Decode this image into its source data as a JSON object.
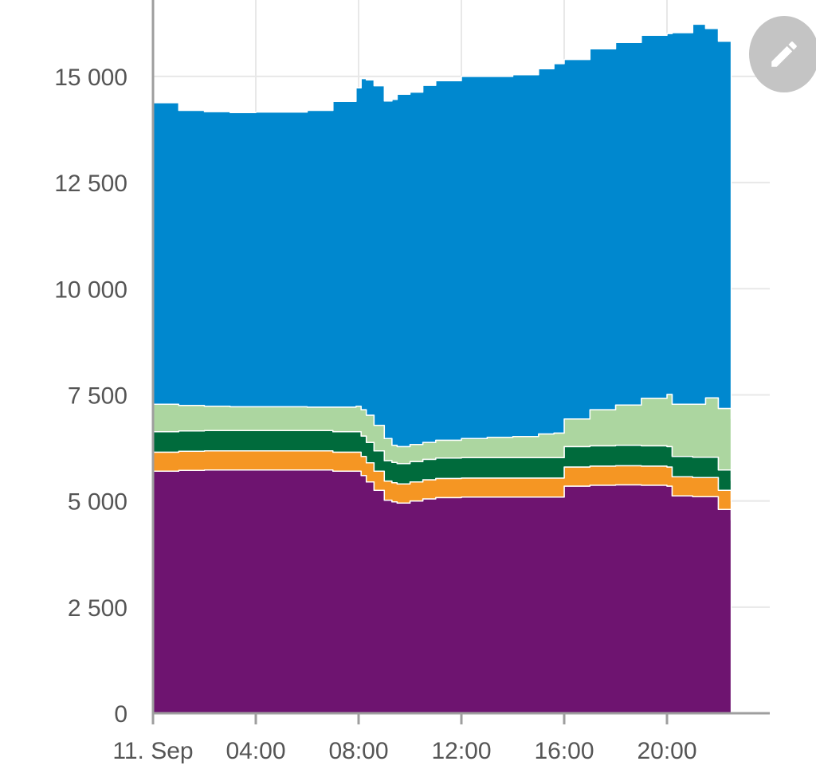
{
  "chart_data": {
    "type": "area",
    "stacked": true,
    "title": "",
    "xlabel": "",
    "ylabel": "",
    "x_ticks": [
      "11. Sep",
      "04:00",
      "08:00",
      "12:00",
      "16:00",
      "20:00"
    ],
    "x_tick_hours": [
      0,
      4,
      8,
      12,
      16,
      20
    ],
    "xlim_hours": [
      0,
      24
    ],
    "y_ticks": [
      "0",
      "2 500",
      "5 000",
      "7 500",
      "10 000",
      "12 500",
      "15 000"
    ],
    "y_tick_values": [
      0,
      2500,
      5000,
      7500,
      10000,
      12500,
      15000
    ],
    "ylim": [
      0,
      16800
    ],
    "grid": true,
    "legend": "none",
    "x_hours": [
      0.0,
      0.75,
      1.0,
      2.0,
      3.0,
      4.0,
      6.0,
      7.0,
      7.9,
      8.1,
      8.3,
      8.6,
      9.0,
      9.3,
      9.5,
      10.0,
      10.5,
      11.0,
      12.0,
      13.0,
      14.0,
      15.0,
      15.6,
      16.0,
      17.0,
      18.0,
      19.0,
      20.0,
      20.2,
      21.0,
      21.5,
      22.0,
      22.5
    ],
    "series": [
      {
        "color": "#6e1470",
        "values": [
          5700,
          5700,
          5720,
          5730,
          5730,
          5730,
          5730,
          5700,
          5700,
          5600,
          5450,
          5250,
          5020,
          4980,
          4950,
          5000,
          5050,
          5080,
          5090,
          5090,
          5090,
          5090,
          5090,
          5350,
          5370,
          5380,
          5370,
          5350,
          5120,
          5100,
          5100,
          4800,
          4550
        ]
      },
      {
        "color": "#f59623",
        "values": [
          450,
          450,
          450,
          450,
          450,
          450,
          450,
          450,
          450,
          450,
          450,
          450,
          450,
          450,
          450,
          450,
          450,
          450,
          450,
          450,
          450,
          450,
          450,
          450,
          450,
          450,
          450,
          450,
          450,
          450,
          450,
          450,
          450
        ]
      },
      {
        "color": "#006b3c",
        "values": [
          480,
          480,
          480,
          480,
          480,
          480,
          480,
          480,
          480,
          480,
          480,
          480,
          480,
          480,
          480,
          480,
          480,
          480,
          480,
          480,
          480,
          480,
          480,
          480,
          480,
          480,
          480,
          480,
          480,
          480,
          480,
          480,
          480
        ]
      },
      {
        "color": "#acd6a0",
        "values": [
          650,
          650,
          600,
          570,
          560,
          560,
          550,
          580,
          600,
          620,
          640,
          600,
          520,
          400,
          400,
          400,
          400,
          420,
          450,
          480,
          500,
          560,
          580,
          650,
          850,
          950,
          1120,
          1230,
          1230,
          1250,
          1400,
          1450,
          1450
        ]
      },
      {
        "color": "#0088cf",
        "values": [
          7100,
          7100,
          6950,
          6940,
          6930,
          6940,
          6990,
          7200,
          7500,
          7800,
          7900,
          8000,
          7950,
          8150,
          8300,
          8300,
          8410,
          8470,
          8530,
          8500,
          8520,
          8600,
          8700,
          8470,
          8500,
          8540,
          8550,
          8500,
          8750,
          8950,
          8700,
          8650,
          8100
        ]
      }
    ]
  },
  "toolbar": {
    "edit_icon": "pencil-icon",
    "edit_bg": "#c4c4c4"
  }
}
